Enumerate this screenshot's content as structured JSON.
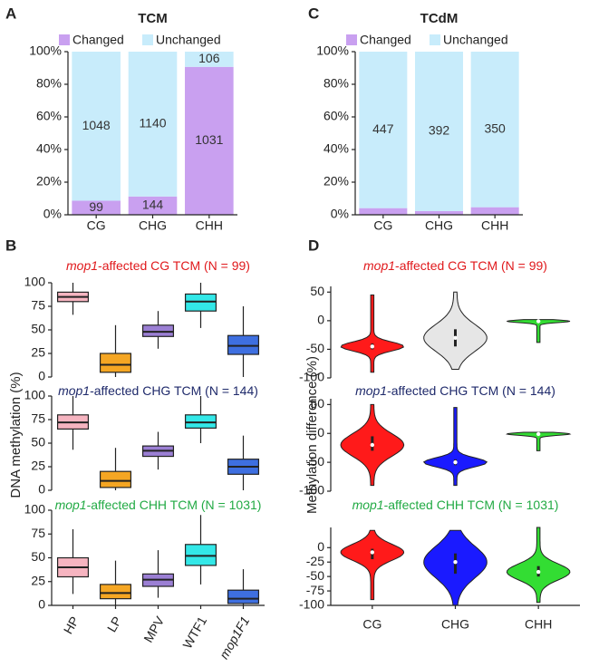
{
  "chart_data": [
    {
      "type": "stacked_bar",
      "panel": "A",
      "title": "TCM",
      "normalize": true,
      "categories": [
        "CG",
        "CHG",
        "CHH"
      ],
      "series": [
        {
          "name": "Changed",
          "color": "#c9a0f0",
          "values": [
            99,
            144,
            1031
          ]
        },
        {
          "name": "Unchanged",
          "color": "#c8ecfb",
          "values": [
            1048,
            1140,
            106
          ]
        }
      ],
      "ylim": [
        0,
        100
      ],
      "yticks": [
        {
          "value": 0,
          "label": "0%"
        },
        {
          "value": 20,
          "label": "20%"
        },
        {
          "value": 40,
          "label": "40%"
        },
        {
          "value": 60,
          "label": "60%"
        },
        {
          "value": 80,
          "label": "80%"
        },
        {
          "value": 100,
          "label": "100%"
        }
      ]
    },
    {
      "type": "stacked_bar",
      "panel": "C",
      "title": "TCdM",
      "normalize": true,
      "categories": [
        "CG",
        "CHG",
        "CHH"
      ],
      "series": [
        {
          "name": "Changed",
          "color": "#c9a0f0",
          "values": [
            19,
            9,
            17
          ]
        },
        {
          "name": "Unchanged",
          "color": "#c8ecfb",
          "values": [
            447,
            392,
            350
          ]
        }
      ],
      "ylim": [
        0,
        100
      ],
      "yticks": [
        {
          "value": 0,
          "label": "0%"
        },
        {
          "value": 20,
          "label": "20%"
        },
        {
          "value": 40,
          "label": "40%"
        },
        {
          "value": 60,
          "label": "60%"
        },
        {
          "value": 80,
          "label": "80%"
        },
        {
          "value": 100,
          "label": "100%"
        }
      ]
    },
    {
      "type": "boxplot",
      "panel": "B",
      "ylabel": "DNA methylation (%)",
      "categories": [
        "HP",
        "LP",
        "MPV",
        "WTF1",
        "mop1F1"
      ],
      "colors": [
        "#f6b4c0",
        "#f5a623",
        "#9b7fd4",
        "#33e8e8",
        "#3e6fe0"
      ],
      "subplots": [
        {
          "title": [
            "mop1",
            "-affected CG TCM (N = 99)"
          ],
          "title_color": "#e0191c",
          "ylim": [
            0,
            100
          ],
          "yticks": [
            0,
            25,
            50,
            75,
            100
          ],
          "values": [
            [
              66,
              80,
              85,
              90,
              100
            ],
            [
              0,
              5,
              13,
              25,
              55
            ],
            [
              30,
              43,
              48,
              55,
              70
            ],
            [
              52,
              70,
              80,
              88,
              100
            ],
            [
              0,
              24,
              33,
              44,
              75
            ]
          ]
        },
        {
          "title": [
            "mop1",
            "-affected CHG TCM (N = 144)"
          ],
          "title_color": "#1f2a6b",
          "ylim": [
            0,
            100
          ],
          "yticks": [
            0,
            25,
            50,
            75,
            100
          ],
          "values": [
            [
              43,
              65,
              72,
              80,
              100
            ],
            [
              0,
              3,
              10,
              20,
              45
            ],
            [
              22,
              36,
              42,
              47,
              62
            ],
            [
              50,
              66,
              72,
              80,
              100
            ],
            [
              0,
              17,
              25,
              33,
              58
            ]
          ]
        },
        {
          "title": [
            "mop1",
            "-affected CHH TCM (N = 1031)"
          ],
          "title_color": "#22aa44",
          "ylim": [
            0,
            100
          ],
          "yticks": [
            0,
            25,
            50,
            75,
            100
          ],
          "values": [
            [
              12,
              30,
              40,
              50,
              80
            ],
            [
              0,
              7,
              13,
              22,
              47
            ],
            [
              8,
              20,
              27,
              33,
              58
            ],
            [
              22,
              42,
              52,
              64,
              95
            ],
            [
              0,
              2,
              7,
              16,
              38
            ]
          ]
        }
      ]
    },
    {
      "type": "violin",
      "panel": "D",
      "ylabel": "Methylation difference (%)",
      "categories": [
        "CG",
        "CHG",
        "CHH"
      ],
      "subplots": [
        {
          "title": [
            "mop1",
            "-affected CG TCM (N = 99)"
          ],
          "title_color": "#e0191c",
          "ylim": [
            -100,
            60
          ],
          "yticks": [
            -100,
            -50,
            0,
            50
          ],
          "colors": [
            "#ff1a1a",
            "#e6e6e6",
            "#33dd33"
          ],
          "values": [
            [
              -90,
              -50,
              -45,
              -40,
              45
            ],
            [
              -85,
              -45,
              -30,
              -15,
              50
            ],
            [
              -38,
              -3,
              -1,
              0,
              2
            ]
          ]
        },
        {
          "title": [
            "mop1",
            "-affected CHG TCM (N = 144)"
          ],
          "title_color": "#1f2a6b",
          "ylim": [
            -100,
            60
          ],
          "yticks": [
            -100,
            -50,
            0,
            50
          ],
          "colors": [
            "#ff1a1a",
            "#1a1aff",
            "#33dd33"
          ],
          "values": [
            [
              -90,
              -30,
              -20,
              -5,
              50
            ],
            [
              -90,
              -55,
              -50,
              -45,
              45
            ],
            [
              -30,
              -3,
              -1,
              0,
              2
            ]
          ]
        },
        {
          "title": [
            "mop1",
            "-affected CHH TCM (N = 1031)"
          ],
          "title_color": "#22aa44",
          "ylim": [
            -100,
            35
          ],
          "yticks": [
            -100,
            -75,
            -50,
            -25,
            0
          ],
          "colors": [
            "#ff1a1a",
            "#1a1aff",
            "#33dd33"
          ],
          "values": [
            [
              -90,
              -20,
              -8,
              -2,
              30
            ],
            [
              -100,
              -45,
              -25,
              -10,
              30
            ],
            [
              -95,
              -50,
              -42,
              -32,
              35
            ]
          ]
        }
      ]
    }
  ]
}
